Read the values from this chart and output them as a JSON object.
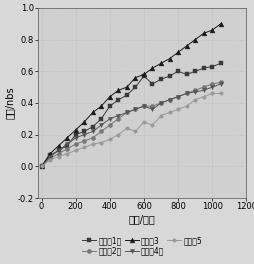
{
  "title": "",
  "xlabel": "时间/小时",
  "ylabel": "色差/nbs",
  "xlim": [
    -20,
    1200
  ],
  "ylim": [
    -0.2,
    1.0
  ],
  "xticks": [
    0,
    200,
    400,
    600,
    800,
    1000,
    1200
  ],
  "yticks": [
    -0.2,
    0.0,
    0.2,
    0.4,
    0.6,
    0.8,
    1.0
  ],
  "series": {
    "s1": {
      "label": "实施例1：",
      "x": [
        0,
        50,
        100,
        150,
        200,
        250,
        300,
        350,
        400,
        450,
        500,
        550,
        600,
        650,
        700,
        750,
        800,
        850,
        900,
        950,
        1000,
        1050
      ],
      "y": [
        0.0,
        0.07,
        0.1,
        0.13,
        0.2,
        0.22,
        0.25,
        0.3,
        0.38,
        0.42,
        0.45,
        0.5,
        0.57,
        0.52,
        0.55,
        0.57,
        0.6,
        0.58,
        0.6,
        0.62,
        0.63,
        0.65
      ],
      "color": "#3a3a3a",
      "marker": "s",
      "ms": 3.0
    },
    "s2": {
      "label": "实施例2：",
      "x": [
        0,
        50,
        100,
        150,
        200,
        250,
        300,
        350,
        400,
        450,
        500,
        550,
        600,
        650,
        700,
        750,
        800,
        850,
        900,
        950,
        1000,
        1050
      ],
      "y": [
        0.0,
        0.05,
        0.08,
        0.11,
        0.14,
        0.16,
        0.18,
        0.22,
        0.26,
        0.3,
        0.34,
        0.36,
        0.38,
        0.38,
        0.4,
        0.42,
        0.44,
        0.46,
        0.48,
        0.5,
        0.52,
        0.53
      ],
      "color": "#777777",
      "marker": "o",
      "ms": 3.0
    },
    "s3": {
      "label": "实施例3",
      "x": [
        0,
        50,
        100,
        150,
        200,
        250,
        300,
        350,
        400,
        450,
        500,
        550,
        600,
        650,
        700,
        750,
        800,
        850,
        900,
        950,
        1000,
        1050
      ],
      "y": [
        0.0,
        0.08,
        0.13,
        0.18,
        0.23,
        0.28,
        0.34,
        0.38,
        0.44,
        0.48,
        0.5,
        0.56,
        0.58,
        0.62,
        0.65,
        0.68,
        0.72,
        0.76,
        0.8,
        0.84,
        0.86,
        0.9
      ],
      "color": "#1a1a1a",
      "marker": "^",
      "ms": 3.5
    },
    "s4": {
      "label": "实施例4：",
      "x": [
        0,
        50,
        100,
        150,
        200,
        250,
        300,
        350,
        400,
        450,
        500,
        550,
        600,
        650,
        700,
        750,
        800,
        850,
        900,
        950,
        1000,
        1050
      ],
      "y": [
        0.0,
        0.06,
        0.1,
        0.14,
        0.18,
        0.2,
        0.22,
        0.26,
        0.3,
        0.32,
        0.34,
        0.36,
        0.38,
        0.36,
        0.4,
        0.42,
        0.44,
        0.46,
        0.47,
        0.48,
        0.5,
        0.52
      ],
      "color": "#555555",
      "marker": "v",
      "ms": 3.0
    },
    "s5": {
      "label": "实施例5",
      "x": [
        0,
        50,
        100,
        150,
        200,
        250,
        300,
        350,
        400,
        450,
        500,
        550,
        600,
        650,
        700,
        750,
        800,
        850,
        900,
        950,
        1000,
        1050
      ],
      "y": [
        0.0,
        0.04,
        0.06,
        0.08,
        0.1,
        0.12,
        0.14,
        0.15,
        0.17,
        0.2,
        0.24,
        0.22,
        0.28,
        0.26,
        0.32,
        0.34,
        0.36,
        0.38,
        0.42,
        0.44,
        0.46,
        0.46
      ],
      "color": "#999999",
      "marker": "o",
      "ms": 2.5
    }
  },
  "background_color": "#d8d8d8",
  "plot_bg": "#d0d0d0",
  "font_size": 7,
  "tick_font_size": 6,
  "lw": 0.7
}
